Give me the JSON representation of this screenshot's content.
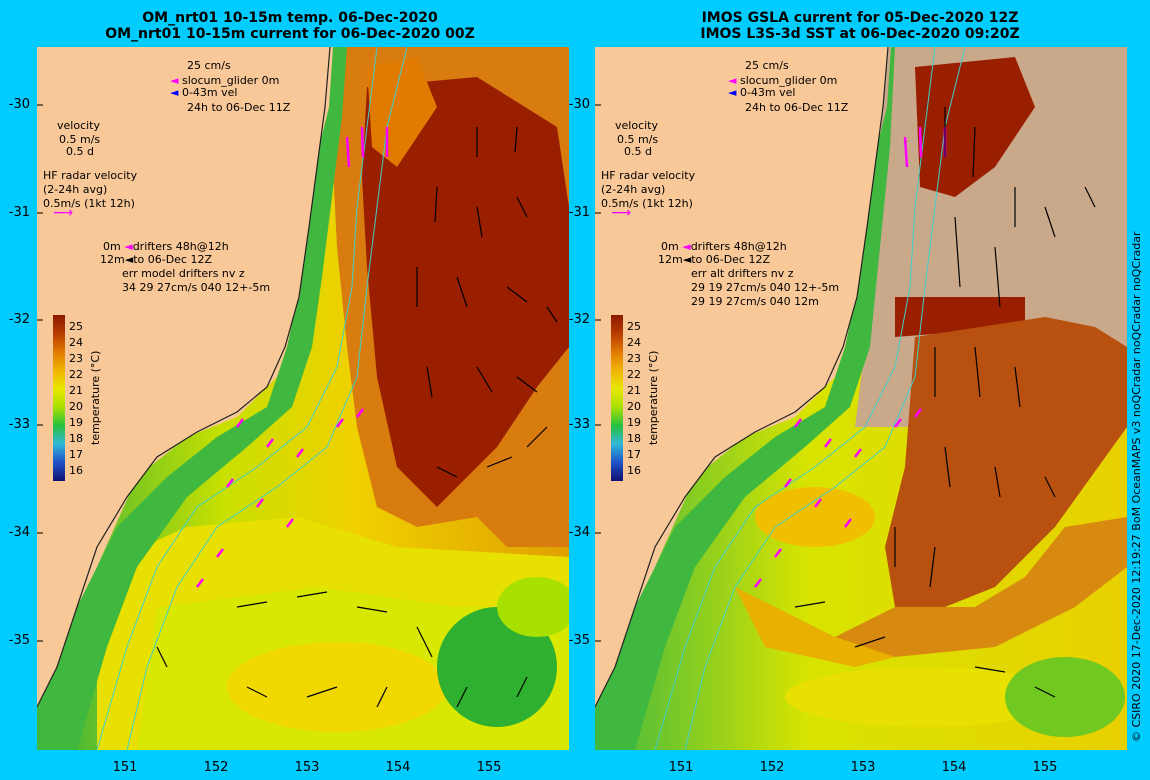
{
  "left_panel": {
    "title_line1": "OM_nrt01 10-15m temp. 06-Dec-2020",
    "title_line2": "OM_nrt01 10-15m current for 06-Dec-2020 00Z",
    "legend": {
      "scale_label": "25 cm/s",
      "glider": "slocum_glider 0m",
      "vel": "0-43m vel",
      "time": "24h to 06-Dec 11Z",
      "velocity_title": "velocity",
      "velocity_ms": "0.5 m/s",
      "velocity_d": "0.5 d",
      "hf_title": "HF radar velocity",
      "hf_avg": "(2-24h avg)",
      "hf_scale": "0.5m/s (1kt 12h)",
      "drifters_0m": "0m",
      "drifters_label": "drifters 48h@12h",
      "drifters_12m": "12m",
      "drifters_to": "to 06-Dec 12Z",
      "err_line": "err model drifters nv z",
      "err_vals": "34 29 27cm/s 040 12+-5m"
    }
  },
  "right_panel": {
    "title_line1": "IMOS GSLA current for 05-Dec-2020 12Z",
    "title_line2": "IMOS L3S-3d SST at 06-Dec-2020 09:20Z",
    "legend": {
      "scale_label": "25 cm/s",
      "glider": "slocum_glider 0m",
      "vel": "0-43m vel",
      "time": "24h to 06-Dec 11Z",
      "velocity_title": "velocity",
      "velocity_ms": "0.5 m/s",
      "velocity_d": "0.5 d",
      "hf_title": "HF radar velocity",
      "hf_avg": "(2-24h avg)",
      "hf_scale": "0.5m/s (1kt 12h)",
      "drifters_0m": "0m",
      "drifters_label": "drifters 48h@12h",
      "drifters_12m": "12m",
      "drifters_to": "to 06-Dec 12Z",
      "err_line": "err alt drifters nv z",
      "err_vals": "29 19 27cm/s 040 12+-5m",
      "err_vals2": "29 19 27cm/s 040 12m"
    }
  },
  "axes": {
    "lat_ticks": [
      "-30",
      "-31",
      "-32",
      "-33",
      "-34",
      "-35"
    ],
    "lon_ticks": [
      "151",
      "152",
      "153",
      "154",
      "155"
    ]
  },
  "colorbar": {
    "ticks": [
      "25",
      "24",
      "23",
      "22",
      "21",
      "20",
      "19",
      "18",
      "17",
      "16"
    ],
    "title": "temperature (°C)",
    "colors": [
      "#8b1a00",
      "#b83c00",
      "#e07a00",
      "#f0b400",
      "#e8e800",
      "#a8e000",
      "#28c040",
      "#30b8d8",
      "#2050c8",
      "#101070"
    ]
  },
  "credit": "© CSIRO 2020   17-Dec-2020 12:19:27 BoM OceanMAPS v3 noQCradar noQCradar noQCradar",
  "colors": {
    "background": "#00ccff",
    "land": "#f9c898",
    "cloud": "#c9a98a",
    "glider": "#ff00ff",
    "contour": "#40d0c8"
  }
}
